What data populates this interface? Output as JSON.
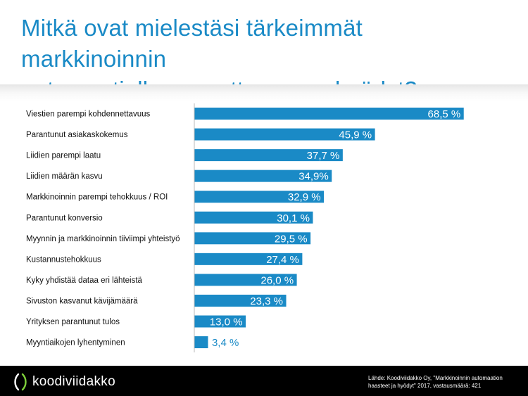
{
  "title_line1": "Mitkä ovat mielestäsi tärkeimmät markkinoinnin",
  "title_line2": "automaatiolla saavuttamanne hyödyt?",
  "colors": {
    "title": "#1a8ac6",
    "bar": "#1a8ac6",
    "footer": "#000000",
    "logo_accent": "#7fd13b"
  },
  "footer": {
    "logo_text": "koodiviidakko",
    "logo_icon": "koodiviidakko-logo-icon",
    "source_line1": "Lähde: Koodiviidakko Oy, \"Markkinoinnin automaation",
    "source_line2": "haasteet ja hyödyt\" 2017, vastausmäärä: 421"
  },
  "chart_data": {
    "type": "bar",
    "orientation": "horizontal",
    "title": "Mitkä ovat mielestäsi tärkeimmät markkinoinnin automaatiolla saavuttamanne hyödyt?",
    "xlim": [
      0,
      100
    ],
    "grid": false,
    "categories": [
      "Viestien parempi kohdennettavuus",
      "Parantunut asiakaskokemus",
      "Liidien parempi laatu",
      "Liidien määrän kasvu",
      "Markkinoinnin parempi tehokkuus / ROI",
      "Parantunut konversio",
      "Myynnin ja markkinoinnin tiiviimpi yhteistyö",
      "Kustannustehokkuus",
      "Kyky yhdistää dataa eri lähteistä",
      "Sivuston kasvanut kävijämäärä",
      "Yrityksen parantunut tulos",
      "Myyntiaikojen lyhentyminen"
    ],
    "values": [
      68.5,
      45.9,
      37.7,
      34.9,
      32.9,
      30.1,
      29.5,
      27.4,
      26.0,
      23.3,
      13.0,
      3.4
    ],
    "data_labels": [
      "68,5 %",
      "45,9 %",
      "37,7 %",
      "34,9%",
      "32,9 %",
      "30,1 %",
      "29,5 %",
      "27,4 %",
      "26,0 %",
      "23,3 %",
      "13,0 %",
      "3,4 %"
    ]
  }
}
